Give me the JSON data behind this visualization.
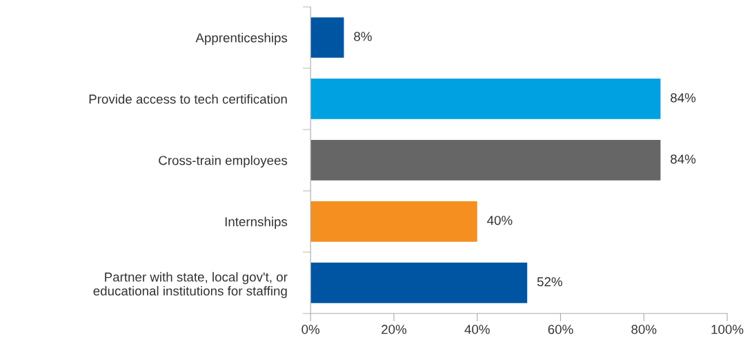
{
  "chart_data": {
    "type": "bar",
    "orientation": "horizontal",
    "categories": [
      "Apprenticeships",
      "Provide access to tech certification",
      "Cross-train employees",
      "Internships",
      "Partner with state, local gov't, or\neducational institutions for staffing"
    ],
    "values": [
      8,
      84,
      84,
      40,
      52
    ],
    "colors": [
      "#0055a3",
      "#00a1e1",
      "#666666",
      "#f48f20",
      "#0055a3"
    ],
    "value_labels": [
      "8%",
      "84%",
      "84%",
      "40%",
      "52%"
    ],
    "xlim": [
      0,
      100
    ],
    "xticks": [
      {
        "value": 0,
        "label": "0%"
      },
      {
        "value": 20,
        "label": "20%"
      },
      {
        "value": 40,
        "label": "40%"
      },
      {
        "value": 60,
        "label": "60%"
      },
      {
        "value": 80,
        "label": "80%"
      },
      {
        "value": 100,
        "label": "100%"
      }
    ],
    "grid": false,
    "legend": false
  }
}
